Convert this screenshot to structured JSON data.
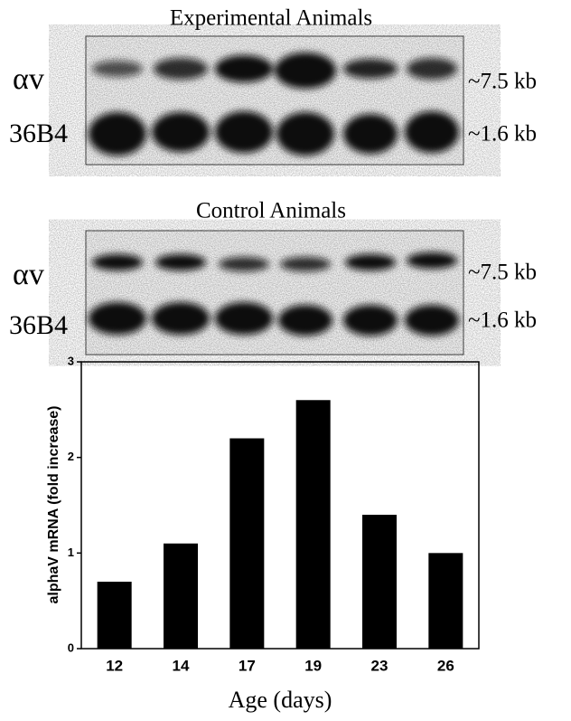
{
  "panels": [
    {
      "title": "Experimental Animals",
      "left_labels": [
        "αv",
        "36B4"
      ],
      "right_labels": [
        "~7.5 kb",
        "~1.6 kb"
      ]
    },
    {
      "title": "Control Animals",
      "left_labels": [
        "αv",
        "36B4"
      ],
      "right_labels": [
        "~7.5 kb",
        "~1.6 kb"
      ]
    }
  ],
  "chart_data": {
    "type": "bar",
    "x_label": "Age (days)",
    "y_label": "alphaV mRNA (fold increase)",
    "categories": [
      "12",
      "14",
      "17",
      "19",
      "23",
      "26"
    ],
    "values": [
      0.7,
      1.1,
      2.2,
      2.6,
      1.4,
      1.0
    ],
    "color": "#000000",
    "ylim": [
      0,
      3
    ],
    "yticks": [
      0,
      1,
      2,
      3
    ]
  }
}
